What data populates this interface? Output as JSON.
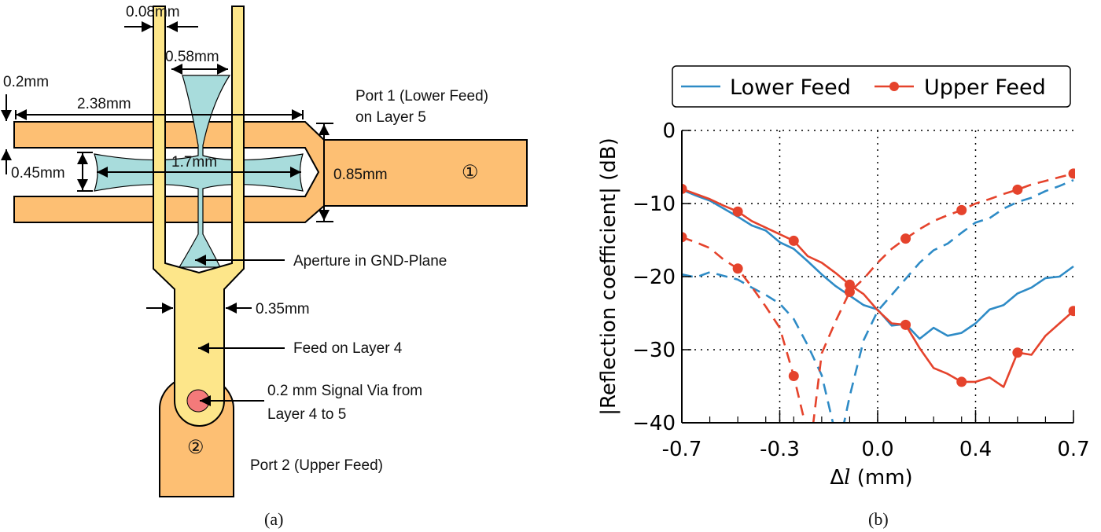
{
  "diagram": {
    "labels": {
      "w_008": "0.08mm",
      "w_058": "0.58mm",
      "w_02": "0.2mm",
      "w_238": "2.38mm",
      "port1_line1": "Port 1 (Lower Feed)",
      "port1_line2": "on Layer 5",
      "w_045": "0.45mm",
      "w_17": "1.7mm",
      "w_085": "0.85mm",
      "port1_num": "①",
      "aperture": "Aperture in GND-Plane",
      "w_035": "0.35mm",
      "feed_layer4": "Feed on Layer 4",
      "via_line1": "0.2 mm Signal Via from",
      "via_line2": "Layer 4 to 5",
      "port2_num": "②",
      "port2": "Port 2 (Upper Feed)"
    },
    "colors": {
      "layer5": "#fdbf73",
      "layer4": "#fde68a",
      "aperture": "#a8dcdc",
      "via": "#f47a7a"
    }
  },
  "captions": {
    "a": "(a)",
    "b": "(b)"
  },
  "chart_data": {
    "type": "line",
    "title": "",
    "xlabel_symbol": "Δ",
    "xlabel_var": "l",
    "xlabel_unit": " (mm)",
    "ylabel": "|Reflection coefficient| (dB)",
    "xlim": [
      -0.7,
      0.7
    ],
    "ylim": [
      -40,
      0
    ],
    "xticks": [
      {
        "value": -0.7,
        "label": "-0.7"
      },
      {
        "value": -0.35,
        "label": "-0.3"
      },
      {
        "value": 0.0,
        "label": "0.0"
      },
      {
        "value": 0.35,
        "label": "0.4"
      },
      {
        "value": 0.7,
        "label": "0.7"
      }
    ],
    "yticks": [
      {
        "value": 0,
        "label": "0"
      },
      {
        "value": -10,
        "label": "−10"
      },
      {
        "value": -20,
        "label": "−20"
      },
      {
        "value": -30,
        "label": "−30"
      },
      {
        "value": -40,
        "label": "−40"
      }
    ],
    "grid": true,
    "legend_placement": "top",
    "legend": [
      {
        "name": "Lower Feed",
        "color": "#2e8bc6",
        "marker": false
      },
      {
        "name": "Upper Feed",
        "color": "#e5432c",
        "marker": true
      }
    ],
    "series": [
      {
        "legend": "Lower Feed",
        "style": "solid",
        "color": "#2e8bc6",
        "marker": false,
        "x": [
          -0.7,
          -0.65,
          -0.6,
          -0.55,
          -0.5,
          -0.45,
          -0.4,
          -0.35,
          -0.3,
          -0.25,
          -0.2,
          -0.15,
          -0.1,
          -0.05,
          0,
          0.05,
          0.1,
          0.15,
          0.2,
          0.25,
          0.3,
          0.35,
          0.4,
          0.45,
          0.5,
          0.55,
          0.6,
          0.65,
          0.7
        ],
        "y": [
          -8.1,
          -8.9,
          -9.6,
          -10.7,
          -11.8,
          -13.0,
          -13.7,
          -15.3,
          -16.2,
          -17.9,
          -19.7,
          -21.3,
          -22.6,
          -23.9,
          -24.5,
          -26.7,
          -26.5,
          -28.5,
          -27.0,
          -28.1,
          -27.7,
          -26.4,
          -24.5,
          -23.9,
          -22.3,
          -21.5,
          -20.2,
          -20.0,
          -18.6
        ]
      },
      {
        "legend": "Lower Feed",
        "style": "dashed",
        "color": "#2e8bc6",
        "marker": false,
        "x": [
          -0.7,
          -0.65,
          -0.6,
          -0.55,
          -0.5,
          -0.45,
          -0.4,
          -0.35,
          -0.3,
          -0.25,
          -0.2,
          -0.16,
          -0.135,
          -0.12,
          -0.1,
          -0.05,
          0,
          0.05,
          0.1,
          0.15,
          0.2,
          0.25,
          0.3,
          0.35,
          0.4,
          0.45,
          0.5,
          0.55,
          0.6,
          0.65,
          0.7
        ],
        "y": [
          -19.7,
          -20.1,
          -19.4,
          -19.9,
          -20.4,
          -21.5,
          -22.5,
          -23.7,
          -25.8,
          -29.4,
          -33.5,
          -40,
          -50,
          -40,
          -36.4,
          -28.7,
          -24.7,
          -22.5,
          -20.3,
          -18.1,
          -16.4,
          -15.5,
          -14.0,
          -12.6,
          -12.0,
          -10.7,
          -9.8,
          -9.2,
          -8.3,
          -7.6,
          -6.8
        ]
      },
      {
        "legend": "Upper Feed",
        "style": "solid",
        "color": "#e5432c",
        "marker": true,
        "x": [
          -0.7,
          -0.65,
          -0.6,
          -0.55,
          -0.5,
          -0.45,
          -0.4,
          -0.35,
          -0.3,
          -0.25,
          -0.2,
          -0.15,
          -0.1,
          -0.05,
          0,
          0.05,
          0.1,
          0.15,
          0.2,
          0.25,
          0.3,
          0.35,
          0.4,
          0.45,
          0.5,
          0.55,
          0.6,
          0.65,
          0.7
        ],
        "y": [
          -8.0,
          -8.7,
          -9.4,
          -10.3,
          -11.1,
          -12.4,
          -13.3,
          -14.2,
          -15.1,
          -17.2,
          -18.1,
          -19.5,
          -21.1,
          -22.4,
          -24.6,
          -26.4,
          -26.6,
          -29.8,
          -32.5,
          -33.3,
          -34.4,
          -34.4,
          -33.8,
          -35.1,
          -30.4,
          -30.7,
          -28.1,
          -26.4,
          -24.7
        ],
        "marker_x": [
          -0.7,
          -0.5,
          -0.3,
          -0.1,
          0.1,
          0.3,
          0.5,
          0.7
        ]
      },
      {
        "legend": "Upper Feed",
        "style": "dashed",
        "color": "#e5432c",
        "marker": true,
        "x": [
          -0.7,
          -0.65,
          -0.6,
          -0.55,
          -0.5,
          -0.45,
          -0.4,
          -0.35,
          -0.3,
          -0.26,
          -0.245,
          -0.23,
          -0.2,
          -0.15,
          -0.1,
          -0.05,
          0,
          0.05,
          0.1,
          0.15,
          0.2,
          0.25,
          0.3,
          0.35,
          0.4,
          0.45,
          0.5,
          0.55,
          0.6,
          0.65,
          0.7
        ],
        "y": [
          -14.6,
          -15.3,
          -16.1,
          -17.7,
          -18.9,
          -21.4,
          -24.1,
          -27.0,
          -33.6,
          -40,
          -50,
          -40,
          -30.5,
          -26.1,
          -22.1,
          -20.3,
          -18.1,
          -16.2,
          -14.8,
          -13.5,
          -12.4,
          -11.6,
          -10.9,
          -10.0,
          -9.4,
          -8.7,
          -8.1,
          -7.4,
          -6.9,
          -6.4,
          -5.9
        ],
        "marker_x": [
          -0.7,
          -0.5,
          -0.3,
          -0.1,
          0.1,
          0.3,
          0.5,
          0.7
        ]
      }
    ]
  }
}
